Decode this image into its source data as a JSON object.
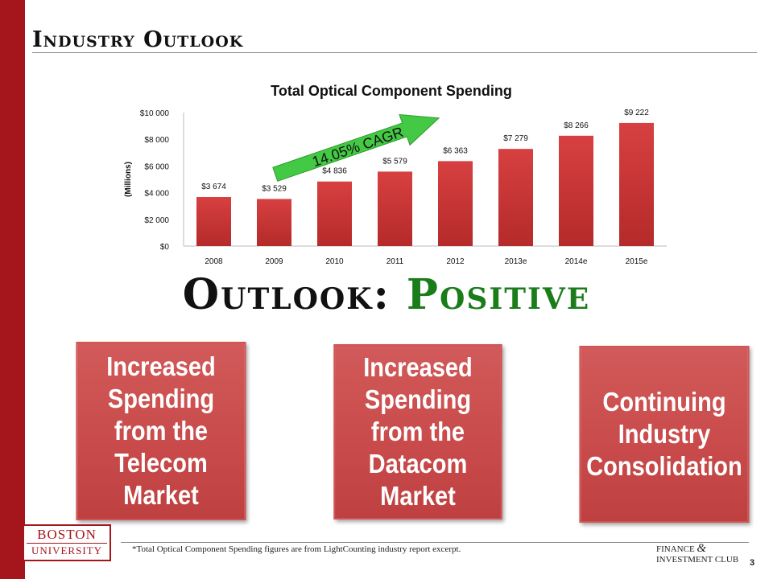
{
  "slide": {
    "title": "Industry Outlook",
    "outlook_label": "Outlook: ",
    "outlook_value": "Positive",
    "footnote": "*Total Optical Component Spending figures are from LightCounting industry report excerpt.",
    "page_number": "3",
    "accent_color": "#a5151c"
  },
  "boxes": [
    {
      "text": "Increased Spending from the Telecom Market"
    },
    {
      "text": "Increased Spending from the Datacom Market"
    },
    {
      "text": "Continuing Industry Consolidation"
    }
  ],
  "logos": {
    "bu_line1": "BOSTON",
    "bu_line2": "UNIVERSITY",
    "club_line1": "FINANCE",
    "club_amp": "&",
    "club_line2": "INVESTMENT CLUB"
  },
  "chart_data": {
    "type": "bar",
    "title": "Total Optical Component Spending",
    "ylabel": "(Millions)",
    "xlabel": "",
    "categories": [
      "2008",
      "2009",
      "2010",
      "2011",
      "2012",
      "2013e",
      "2014e",
      "2015e"
    ],
    "values": [
      3674,
      3529,
      4836,
      5579,
      6363,
      7279,
      8266,
      9222
    ],
    "value_labels": [
      "$3 674",
      "$3 529",
      "$4 836",
      "$5 579",
      "$6 363",
      "$7 279",
      "$8 266",
      "$9 222"
    ],
    "yticks": [
      "$0",
      "$2 000",
      "$4 000",
      "$6 000",
      "$8 000",
      "$10 000"
    ],
    "ylim": [
      0,
      10000
    ],
    "annotation": "14.05% CAGR",
    "bar_color": "#c83434",
    "annotation_color": "#3bc43b",
    "grid": false,
    "legend": "none"
  }
}
